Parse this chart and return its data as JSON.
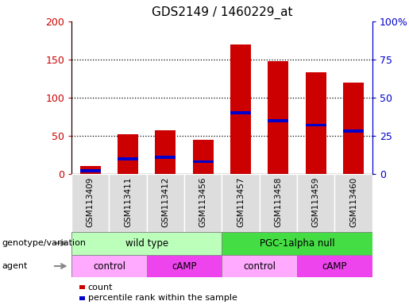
{
  "title": "GDS2149 / 1460229_at",
  "samples": [
    "GSM113409",
    "GSM113411",
    "GSM113412",
    "GSM113456",
    "GSM113457",
    "GSM113458",
    "GSM113459",
    "GSM113460"
  ],
  "count_values": [
    10,
    52,
    57,
    45,
    170,
    148,
    133,
    120
  ],
  "percentile_values": [
    2,
    10,
    11,
    8,
    40,
    35,
    32,
    28
  ],
  "genotype_groups": [
    {
      "label": "wild type",
      "start": 0,
      "end": 4,
      "color": "#bbffbb"
    },
    {
      "label": "PGC-1alpha null",
      "start": 4,
      "end": 8,
      "color": "#44dd44"
    }
  ],
  "agent_groups": [
    {
      "label": "control",
      "start": 0,
      "end": 2,
      "color": "#ffaaff"
    },
    {
      "label": "cAMP",
      "start": 2,
      "end": 4,
      "color": "#ee44ee"
    },
    {
      "label": "control",
      "start": 4,
      "end": 6,
      "color": "#ffaaff"
    },
    {
      "label": "cAMP",
      "start": 6,
      "end": 8,
      "color": "#ee44ee"
    }
  ],
  "ylim_left": [
    0,
    200
  ],
  "ylim_right": [
    0,
    100
  ],
  "yticks_left": [
    0,
    50,
    100,
    150,
    200
  ],
  "yticks_right": [
    0,
    25,
    50,
    75,
    100
  ],
  "ytick_labels_left": [
    "0",
    "50",
    "100",
    "150",
    "200"
  ],
  "ytick_labels_right": [
    "0",
    "25",
    "50",
    "75",
    "100%"
  ],
  "bar_color": "#cc0000",
  "percentile_color": "#0000cc",
  "grid_color": "#000000",
  "background_color": "#ffffff",
  "left_label_color": "#cc0000",
  "right_label_color": "#0000cc",
  "legend_count_label": "count",
  "legend_percentile_label": "percentile rank within the sample",
  "genotype_row_label": "genotype/variation",
  "agent_row_label": "agent",
  "bar_width": 0.55,
  "xtick_bg_color": "#dddddd",
  "percentile_bar_height": 4
}
